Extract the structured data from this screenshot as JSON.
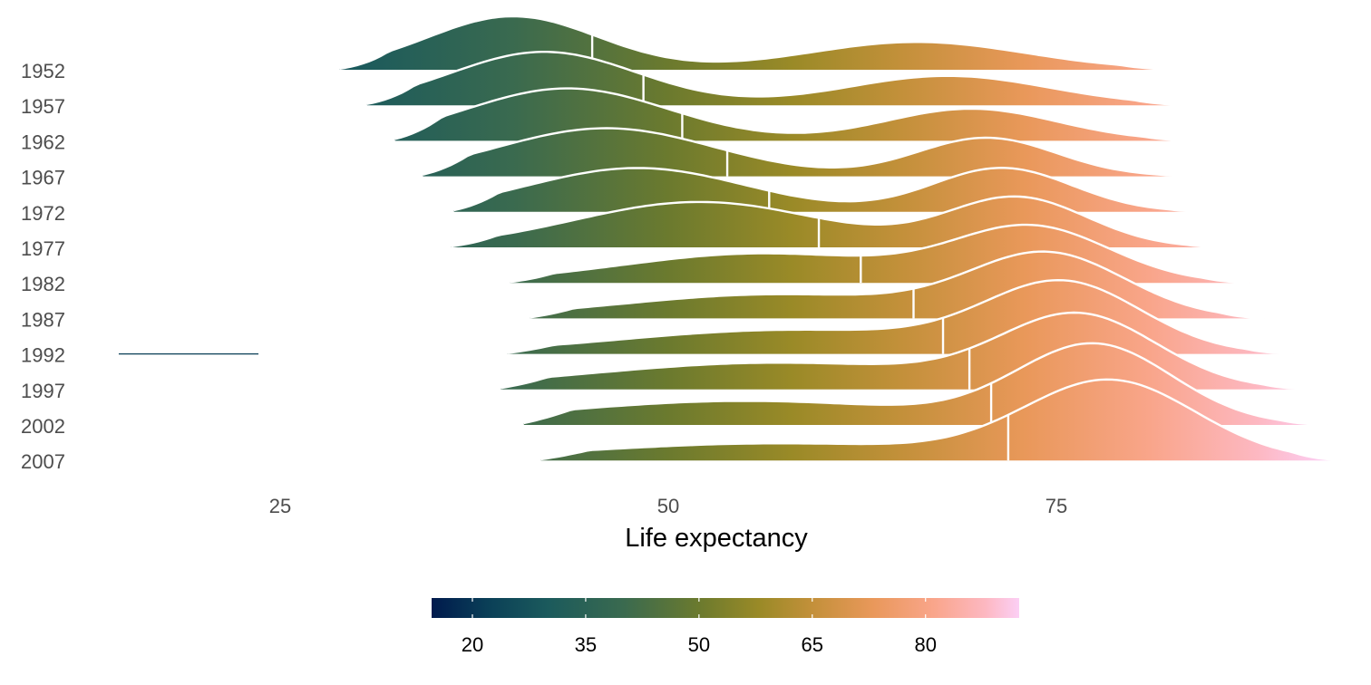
{
  "chart_data": {
    "type": "ridgeline",
    "xlabel": "Life expectancy",
    "xlim": [
      14.5,
      94.3
    ],
    "xticks": [
      25,
      50,
      75
    ],
    "legend": {
      "position": "bottom",
      "range": [
        14.6,
        92.4
      ],
      "ticks": [
        20,
        35,
        50,
        65,
        80
      ],
      "stops": [
        {
          "value": 14.6,
          "color": "#001a4d"
        },
        {
          "value": 22,
          "color": "#0a3f57"
        },
        {
          "value": 30,
          "color": "#1b5a5c"
        },
        {
          "value": 40,
          "color": "#3a6a4f"
        },
        {
          "value": 50,
          "color": "#6b7a2e"
        },
        {
          "value": 58,
          "color": "#9a8a27"
        },
        {
          "value": 65,
          "color": "#c3903a"
        },
        {
          "value": 73,
          "color": "#e9985a"
        },
        {
          "value": 81,
          "color": "#f9a58a"
        },
        {
          "value": 88,
          "color": "#fdb8c2"
        },
        {
          "value": 92.4,
          "color": "#fccff5"
        }
      ]
    },
    "series": [
      {
        "year": "1952",
        "range": [
          28.8,
          82.3
        ],
        "median": 45.1,
        "peaks": [
          {
            "mu": 40,
            "sigma": 5.5,
            "h": 1.0
          },
          {
            "mu": 66,
            "sigma": 7,
            "h": 0.52
          }
        ]
      },
      {
        "year": "1957",
        "range": [
          30.6,
          83.0
        ],
        "median": 48.4,
        "peaks": [
          {
            "mu": 42,
            "sigma": 6,
            "h": 1.0
          },
          {
            "mu": 68,
            "sigma": 6.5,
            "h": 0.55
          }
        ]
      },
      {
        "year": "1962",
        "range": [
          32.4,
          83.7
        ],
        "median": 50.9,
        "peaks": [
          {
            "mu": 43.5,
            "sigma": 6.5,
            "h": 0.98
          },
          {
            "mu": 69.5,
            "sigma": 5.5,
            "h": 0.6
          }
        ]
      },
      {
        "year": "1967",
        "range": [
          34.2,
          84.4
        ],
        "median": 53.8,
        "peaks": [
          {
            "mu": 46,
            "sigma": 7,
            "h": 0.9
          },
          {
            "mu": 70.5,
            "sigma": 4.5,
            "h": 0.72
          }
        ]
      },
      {
        "year": "1972",
        "range": [
          36.2,
          85.1
        ],
        "median": 56.5,
        "peaks": [
          {
            "mu": 48,
            "sigma": 7,
            "h": 0.82
          },
          {
            "mu": 71.5,
            "sigma": 4.5,
            "h": 0.82
          }
        ]
      },
      {
        "year": "1977",
        "range": [
          36.0,
          86.3
        ],
        "median": 59.7,
        "peaks": [
          {
            "mu": 52,
            "sigma": 8,
            "h": 0.85
          },
          {
            "mu": 72.5,
            "sigma": 4.5,
            "h": 0.92
          }
        ]
      },
      {
        "year": "1982",
        "range": [
          39.8,
          87.4
        ],
        "median": 62.4,
        "peaks": [
          {
            "mu": 56,
            "sigma": 9,
            "h": 0.55
          },
          {
            "mu": 73.5,
            "sigma": 5,
            "h": 1.0
          }
        ]
      },
      {
        "year": "1987",
        "range": [
          41.1,
          88.4
        ],
        "median": 65.8,
        "peaks": [
          {
            "mu": 57,
            "sigma": 10,
            "h": 0.45
          },
          {
            "mu": 74.5,
            "sigma": 5,
            "h": 1.15
          }
        ]
      },
      {
        "year": "1992",
        "range": [
          39.6,
          90.3
        ],
        "median": 67.7,
        "peaks": [
          {
            "mu": 58,
            "sigma": 11,
            "h": 0.45
          },
          {
            "mu": 75.5,
            "sigma": 5,
            "h": 1.25
          }
        ]
      },
      {
        "year": "1997",
        "range": [
          39.2,
          91.4
        ],
        "median": 69.4,
        "peaks": [
          {
            "mu": 57,
            "sigma": 12,
            "h": 0.5
          },
          {
            "mu": 76.5,
            "sigma": 5,
            "h": 1.3
          }
        ]
      },
      {
        "year": "2002",
        "range": [
          40.7,
          92.5
        ],
        "median": 70.8,
        "peaks": [
          {
            "mu": 55,
            "sigma": 12,
            "h": 0.45
          },
          {
            "mu": 77.5,
            "sigma": 5,
            "h": 1.45
          }
        ]
      },
      {
        "year": "2007",
        "range": [
          41.8,
          93.3
        ],
        "median": 71.9,
        "peaks": [
          {
            "mu": 57,
            "sigma": 12,
            "h": 0.32
          },
          {
            "mu": 78.5,
            "sigma": 5.5,
            "h": 1.45
          }
        ]
      }
    ],
    "outliers": [
      {
        "year": "1992",
        "range": [
          14.6,
          23.6
        ]
      }
    ]
  }
}
